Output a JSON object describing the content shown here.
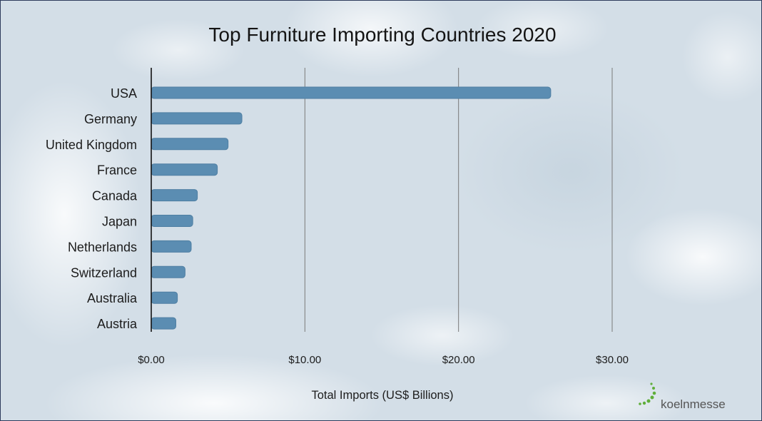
{
  "chart_data": {
    "type": "bar",
    "orientation": "horizontal",
    "title": "Top Furniture Importing Countries 2020",
    "xlabel": "Total Imports (US$ Billions)",
    "ylabel": "",
    "categories": [
      "USA",
      "Germany",
      "United Kingdom",
      "France",
      "Canada",
      "Japan",
      "Netherlands",
      "Switzerland",
      "Australia",
      "Austria"
    ],
    "values": [
      26.0,
      5.9,
      5.0,
      4.3,
      3.0,
      2.7,
      2.6,
      2.2,
      1.7,
      1.6
    ],
    "xlim": [
      0,
      30
    ],
    "xtick_values": [
      0,
      10,
      20,
      30
    ],
    "xtick_labels": [
      "$0.00",
      "$10.00",
      "$20.00",
      "$30.00"
    ],
    "grid": true,
    "legend": "none"
  },
  "colors": {
    "bar": "#5b8db2",
    "bar_edge": "#4f7fa3",
    "axis": "#111111",
    "grid": "#7a7a7a",
    "logo_dots": "#5fae3a"
  },
  "logo": {
    "text": "koelnmesse",
    "icon": "koelnmesse-dots-icon"
  }
}
